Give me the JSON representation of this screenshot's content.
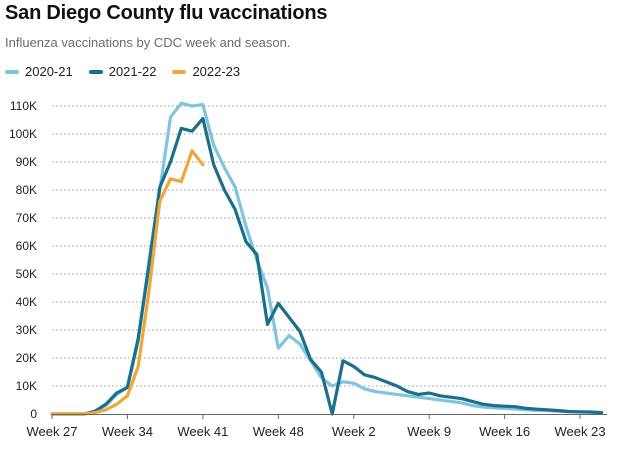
{
  "header": {
    "title": "San Diego County flu vaccinations",
    "subtitle": "Influenza vaccinations by CDC week and season."
  },
  "chart_data": {
    "type": "line",
    "title": "San Diego County flu vaccinations",
    "subtitle": "Influenza vaccinations by CDC week and season.",
    "xlabel": "",
    "ylabel": "",
    "ylim": [
      0,
      110000
    ],
    "grid": true,
    "legend_position": "top-left",
    "y_ticks": [
      {
        "value": 0,
        "label": "0"
      },
      {
        "value": 10000,
        "label": "10K"
      },
      {
        "value": 20000,
        "label": "20K"
      },
      {
        "value": 30000,
        "label": "30K"
      },
      {
        "value": 40000,
        "label": "40K"
      },
      {
        "value": 50000,
        "label": "50K"
      },
      {
        "value": 60000,
        "label": "60K"
      },
      {
        "value": 70000,
        "label": "70K"
      },
      {
        "value": 80000,
        "label": "80K"
      },
      {
        "value": 90000,
        "label": "90K"
      },
      {
        "value": 100000,
        "label": "100K"
      },
      {
        "value": 110000,
        "label": "110K"
      }
    ],
    "x_ticks": [
      {
        "index": 0,
        "label": "Week 27"
      },
      {
        "index": 7,
        "label": "Week 34"
      },
      {
        "index": 14,
        "label": "Week 41"
      },
      {
        "index": 21,
        "label": "Week 48"
      },
      {
        "index": 28,
        "label": "Week 2"
      },
      {
        "index": 35,
        "label": "Week 9"
      },
      {
        "index": 42,
        "label": "Week 16"
      },
      {
        "index": 49,
        "label": "Week 23"
      }
    ],
    "x_domain": [
      0,
      51.5
    ],
    "series": [
      {
        "name": "2020-21",
        "color": "#7fc4e0",
        "values": [
          0,
          0,
          0,
          0,
          1000,
          3000,
          7000,
          9500,
          26000,
          55000,
          80000,
          106000,
          111000,
          110000,
          110500,
          96000,
          88000,
          81000,
          67000,
          55000,
          45000,
          23500,
          28000,
          25000,
          19000,
          13000,
          10000,
          11500,
          11000,
          9000,
          8000,
          7500,
          7000,
          6500,
          6000,
          5500,
          5000,
          4500,
          4000,
          3000,
          2500,
          2200,
          2000,
          1800,
          1500,
          1300,
          1200,
          1000,
          800,
          700,
          600,
          500
        ]
      },
      {
        "name": "2021-22",
        "color": "#1a6f8c",
        "values": [
          0,
          0,
          0,
          0,
          1000,
          3500,
          7500,
          9500,
          27000,
          53000,
          81000,
          90000,
          102000,
          101000,
          105500,
          89000,
          80000,
          73000,
          61500,
          57000,
          32000,
          39500,
          34500,
          29500,
          19500,
          15000,
          0,
          19000,
          17000,
          14000,
          13000,
          11500,
          10000,
          8000,
          7000,
          7500,
          6500,
          6000,
          5500,
          4500,
          3500,
          3000,
          2800,
          2600,
          2000,
          1700,
          1500,
          1200,
          900,
          800,
          700,
          500
        ]
      },
      {
        "name": "2022-23",
        "color": "#f0a63a",
        "values": [
          0,
          0,
          0,
          0,
          500,
          1500,
          3500,
          6500,
          17000,
          44000,
          76000,
          84000,
          83000,
          94000,
          89000
        ]
      }
    ]
  }
}
